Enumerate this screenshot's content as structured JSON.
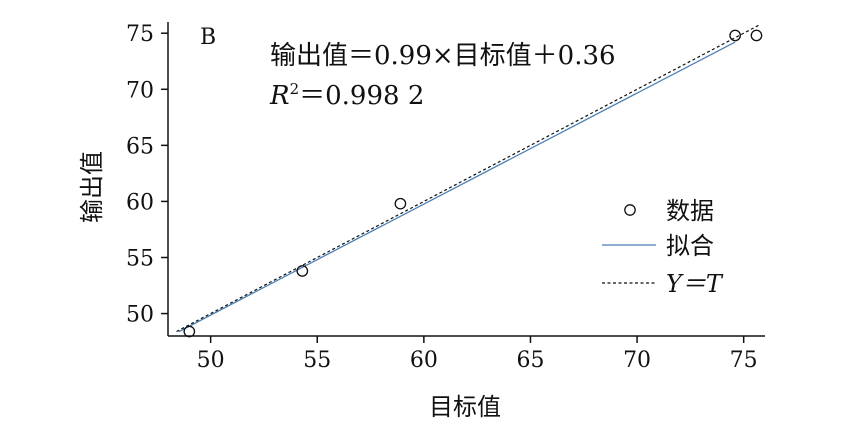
{
  "chart_data": {
    "type": "scatter",
    "panel_label": "B",
    "xlabel": "目标值",
    "ylabel": "输出值",
    "xlim": [
      48,
      76
    ],
    "ylim": [
      48,
      76
    ],
    "x_ticks": [
      50,
      55,
      60,
      65,
      70,
      75
    ],
    "y_ticks": [
      50,
      55,
      60,
      65,
      70,
      75
    ],
    "equation": "输出值＝0.99×目标值＋0.36",
    "r2": {
      "symbol": "R",
      "superscript": "2",
      "text": "＝0.998 2"
    },
    "series": [
      {
        "name": "数据",
        "kind": "points",
        "x": [
          49.0,
          54.3,
          58.9,
          74.6,
          75.6
        ],
        "y": [
          48.4,
          53.8,
          59.8,
          74.8,
          74.8
        ]
      },
      {
        "name": "拟合",
        "kind": "line",
        "color": "#4a7fb5",
        "slope": 0.99,
        "intercept": 0.36,
        "x": [
          48.5,
          74.6
        ]
      },
      {
        "name": "Y＝T",
        "kind": "dashed-line",
        "x": [
          48.4,
          75.7
        ]
      }
    ],
    "legend": {
      "position": "right",
      "entries": [
        {
          "label": "数据",
          "marker": "circle"
        },
        {
          "label": "拟合",
          "marker": "line",
          "color": "#4a7fb5"
        },
        {
          "label": "Y＝T",
          "marker": "dashed-line",
          "italic": true
        }
      ]
    },
    "grid": false
  }
}
